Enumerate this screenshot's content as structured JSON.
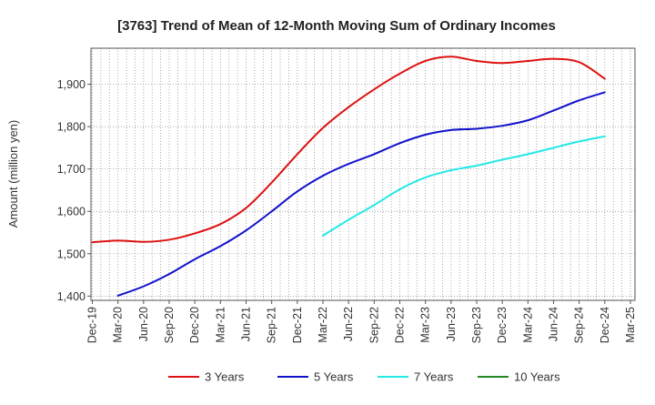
{
  "chart_data": {
    "type": "line",
    "title": "[3763]  Trend of Mean of 12-Month Moving Sum of Ordinary Incomes",
    "xlabel": "",
    "ylabel": "Amount (million yen)",
    "ylim": [
      1390,
      1985
    ],
    "yticks": [
      1400,
      1500,
      1600,
      1700,
      1800,
      1900
    ],
    "ytick_labels": [
      "1,400",
      "1,500",
      "1,600",
      "1,700",
      "1,800",
      "1,900"
    ],
    "x_start": "Dec-19",
    "x_months": 63,
    "xtick_labels": [
      "Dec-19",
      "Mar-20",
      "Jun-20",
      "Sep-20",
      "Dec-20",
      "Mar-21",
      "Jun-21",
      "Sep-21",
      "Dec-21",
      "Mar-22",
      "Jun-22",
      "Sep-22",
      "Dec-22",
      "Mar-23",
      "Jun-23",
      "Sep-23",
      "Dec-23",
      "Mar-24",
      "Jun-24",
      "Sep-24",
      "Dec-24",
      "Mar-25"
    ],
    "grid": true,
    "legend_position": "bottom",
    "series": [
      {
        "name": "3 Years",
        "color": "#dd1111",
        "points": [
          [
            0,
            1527
          ],
          [
            3,
            1531
          ],
          [
            6,
            1528
          ],
          [
            9,
            1533
          ],
          [
            12,
            1548
          ],
          [
            15,
            1570
          ],
          [
            18,
            1608
          ],
          [
            21,
            1668
          ],
          [
            24,
            1735
          ],
          [
            27,
            1797
          ],
          [
            30,
            1846
          ],
          [
            33,
            1888
          ],
          [
            36,
            1925
          ],
          [
            39,
            1955
          ],
          [
            42,
            1965
          ],
          [
            45,
            1955
          ],
          [
            48,
            1950
          ],
          [
            51,
            1955
          ],
          [
            54,
            1960
          ],
          [
            57,
            1952
          ],
          [
            60,
            1913
          ]
        ]
      },
      {
        "name": "5 Years",
        "color": "#1111cc",
        "points": [
          [
            3,
            1401
          ],
          [
            6,
            1423
          ],
          [
            9,
            1452
          ],
          [
            12,
            1487
          ],
          [
            15,
            1518
          ],
          [
            18,
            1555
          ],
          [
            21,
            1600
          ],
          [
            24,
            1647
          ],
          [
            27,
            1684
          ],
          [
            30,
            1712
          ],
          [
            33,
            1735
          ],
          [
            36,
            1761
          ],
          [
            39,
            1781
          ],
          [
            42,
            1792
          ],
          [
            45,
            1795
          ],
          [
            48,
            1802
          ],
          [
            51,
            1815
          ],
          [
            54,
            1838
          ],
          [
            57,
            1862
          ],
          [
            60,
            1881
          ]
        ]
      },
      {
        "name": "7 Years",
        "color": "#22e8e8",
        "points": [
          [
            27,
            1543
          ],
          [
            30,
            1580
          ],
          [
            33,
            1615
          ],
          [
            36,
            1652
          ],
          [
            39,
            1680
          ],
          [
            42,
            1697
          ],
          [
            45,
            1708
          ],
          [
            48,
            1722
          ],
          [
            51,
            1735
          ],
          [
            54,
            1750
          ],
          [
            57,
            1765
          ],
          [
            60,
            1777
          ]
        ]
      },
      {
        "name": "10 Years",
        "color": "#228822",
        "points": []
      }
    ]
  }
}
